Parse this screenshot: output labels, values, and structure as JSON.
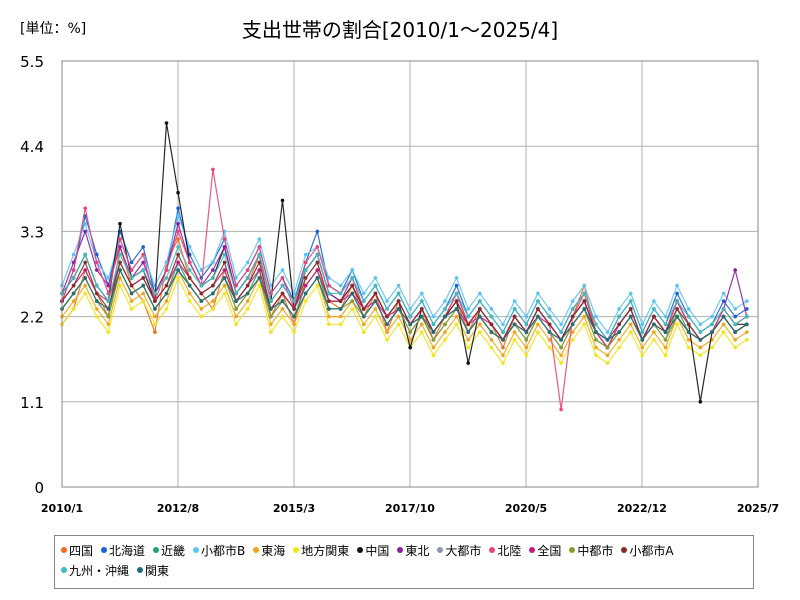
{
  "chart_data": {
    "type": "line",
    "title": "支出世帯の割合[2010/1～2025/4]",
    "unit_label": "[単位：%]",
    "xlabel": "",
    "ylabel": "",
    "ylim": [
      0,
      5.5
    ],
    "yticks": [
      "0",
      "1.1",
      "2.2",
      "3.3",
      "4.4",
      "5.5"
    ],
    "xticks": [
      "2010/1",
      "2012/8",
      "2015/3",
      "2017/10",
      "2020/5",
      "2022/12",
      "2025/7"
    ],
    "grid": true,
    "legend_position": "bottom",
    "series": [
      {
        "name": "四国",
        "color": "#f26b1d",
        "values": [
          2.1,
          2.3,
          2.8,
          2.5,
          2.2,
          3.1,
          2.6,
          2.4,
          2.0,
          2.9,
          3.2,
          2.7,
          2.5,
          2.3,
          2.8,
          2.4,
          2.6,
          3.0,
          2.2,
          2.5,
          2.1,
          2.7,
          2.9,
          2.4,
          2.3,
          2.6,
          2.2,
          2.5,
          2.0,
          2.4,
          2.1,
          2.3,
          1.9,
          2.2,
          2.4,
          2.0,
          2.3,
          2.1,
          1.8,
          2.2,
          2.0,
          2.3,
          2.1,
          1.9,
          2.2,
          2.6,
          2.0,
          1.8,
          2.1,
          2.3,
          1.9,
          2.2,
          2.0,
          2.4,
          2.1,
          1.9,
          2.0,
          2.3,
          2.1,
          2.2
        ]
      },
      {
        "name": "北海道",
        "color": "#1a5fd6",
        "values": [
          2.4,
          2.8,
          3.5,
          3.0,
          2.6,
          3.3,
          2.9,
          3.1,
          2.5,
          2.8,
          3.6,
          3.0,
          2.7,
          2.9,
          3.2,
          2.6,
          2.8,
          3.1,
          2.5,
          2.7,
          2.4,
          2.9,
          3.3,
          2.6,
          2.5,
          2.8,
          2.4,
          2.6,
          2.3,
          2.5,
          2.2,
          2.4,
          2.1,
          2.3,
          2.6,
          2.2,
          2.4,
          2.2,
          2.0,
          2.3,
          2.1,
          2.4,
          2.2,
          2.0,
          2.3,
          2.5,
          2.1,
          1.9,
          2.2,
          2.4,
          2.0,
          2.3,
          2.1,
          2.5,
          2.2,
          2.0,
          2.1,
          2.4,
          2.2,
          2.3
        ]
      },
      {
        "name": "近畿",
        "color": "#1fa36e",
        "values": [
          2.3,
          2.5,
          2.7,
          2.4,
          2.2,
          2.8,
          2.5,
          2.6,
          2.3,
          2.5,
          2.9,
          2.6,
          2.4,
          2.5,
          2.7,
          2.3,
          2.5,
          2.8,
          2.2,
          2.4,
          2.2,
          2.6,
          2.8,
          2.3,
          2.3,
          2.5,
          2.2,
          2.4,
          2.1,
          2.3,
          2.0,
          2.2,
          1.9,
          2.1,
          2.3,
          2.0,
          2.2,
          2.0,
          1.9,
          2.1,
          1.9,
          2.2,
          2.0,
          1.8,
          2.1,
          2.3,
          1.9,
          1.8,
          2.0,
          2.2,
          1.9,
          2.1,
          1.9,
          2.3,
          2.0,
          1.9,
          2.0,
          2.2,
          2.0,
          2.1
        ]
      },
      {
        "name": "小都市B",
        "color": "#5cc4f2",
        "values": [
          2.6,
          3.0,
          3.4,
          2.9,
          2.7,
          3.2,
          2.8,
          3.0,
          2.6,
          2.9,
          3.5,
          3.1,
          2.8,
          2.9,
          3.3,
          2.7,
          2.9,
          3.2,
          2.6,
          2.8,
          2.5,
          3.0,
          3.1,
          2.7,
          2.6,
          2.8,
          2.5,
          2.7,
          2.4,
          2.6,
          2.3,
          2.5,
          2.2,
          2.4,
          2.7,
          2.3,
          2.5,
          2.3,
          2.1,
          2.4,
          2.2,
          2.5,
          2.3,
          2.1,
          2.4,
          2.6,
          2.2,
          2.0,
          2.3,
          2.5,
          2.1,
          2.4,
          2.2,
          2.6,
          2.3,
          2.1,
          2.2,
          2.5,
          2.3,
          2.4
        ]
      },
      {
        "name": "東海",
        "color": "#f2a51a",
        "values": [
          2.2,
          2.4,
          2.6,
          2.3,
          2.1,
          2.7,
          2.4,
          2.5,
          2.2,
          2.4,
          2.8,
          2.5,
          2.3,
          2.4,
          2.6,
          2.2,
          2.4,
          2.7,
          2.1,
          2.3,
          2.1,
          2.5,
          2.7,
          2.2,
          2.2,
          2.4,
          2.1,
          2.3,
          2.0,
          2.2,
          1.9,
          2.1,
          1.8,
          2.0,
          2.2,
          1.9,
          2.1,
          1.9,
          1.7,
          2.0,
          1.8,
          2.1,
          1.9,
          1.7,
          2.0,
          2.2,
          1.8,
          1.7,
          1.9,
          2.1,
          1.8,
          2.0,
          1.8,
          2.2,
          1.9,
          1.8,
          1.9,
          2.1,
          1.9,
          2.0
        ]
      },
      {
        "name": "地方関東",
        "color": "#f2e51a",
        "values": [
          2.1,
          2.3,
          2.5,
          2.2,
          2.0,
          2.6,
          2.3,
          2.4,
          2.1,
          2.3,
          2.7,
          2.4,
          2.2,
          2.3,
          2.5,
          2.1,
          2.3,
          2.6,
          2.0,
          2.2,
          2.0,
          2.4,
          2.6,
          2.1,
          2.1,
          2.3,
          2.0,
          2.2,
          1.9,
          2.1,
          1.8,
          2.0,
          1.7,
          1.9,
          2.1,
          1.8,
          2.0,
          1.8,
          1.6,
          1.9,
          1.7,
          2.0,
          1.8,
          1.6,
          1.9,
          2.1,
          1.7,
          1.6,
          1.8,
          2.0,
          1.7,
          1.9,
          1.7,
          2.1,
          1.8,
          1.7,
          1.8,
          2.0,
          1.8,
          1.9
        ]
      },
      {
        "name": "中国",
        "color": "#111111",
        "values": [
          2.5,
          2.7,
          3.0,
          2.6,
          2.4,
          3.4,
          2.7,
          2.8,
          2.4,
          4.7,
          3.8,
          2.9,
          2.6,
          2.7,
          3.1,
          2.5,
          2.7,
          3.0,
          2.4,
          3.7,
          2.3,
          2.8,
          3.0,
          2.5,
          2.4,
          2.6,
          2.3,
          2.5,
          2.2,
          2.4,
          1.8,
          2.3,
          2.0,
          2.2,
          2.4,
          1.6,
          2.3,
          2.1,
          1.9,
          2.2,
          2.0,
          2.3,
          2.1,
          1.9,
          2.2,
          2.4,
          2.0,
          1.8,
          2.1,
          2.3,
          1.9,
          2.2,
          2.0,
          2.4,
          2.1,
          1.1,
          2.0,
          2.3,
          2.1,
          2.1
        ]
      },
      {
        "name": "東北",
        "color": "#8a1fa3",
        "values": [
          2.5,
          2.9,
          3.3,
          2.8,
          2.6,
          3.1,
          2.7,
          2.9,
          2.5,
          2.8,
          3.4,
          2.9,
          2.6,
          2.8,
          3.1,
          2.5,
          2.7,
          3.0,
          2.4,
          2.6,
          2.4,
          2.8,
          3.0,
          2.5,
          2.4,
          2.7,
          2.3,
          2.5,
          2.2,
          2.4,
          2.1,
          2.3,
          2.0,
          2.2,
          2.5,
          2.1,
          2.3,
          2.1,
          1.9,
          2.2,
          2.0,
          2.3,
          2.1,
          1.9,
          2.2,
          2.4,
          2.0,
          1.8,
          2.1,
          2.3,
          1.9,
          2.2,
          2.0,
          2.4,
          2.1,
          1.9,
          2.0,
          2.3,
          2.8,
          2.2
        ]
      },
      {
        "name": "大都市",
        "color": "#8c96a6",
        "values": [
          2.3,
          2.5,
          2.7,
          2.4,
          2.3,
          2.8,
          2.5,
          2.6,
          2.3,
          2.5,
          2.8,
          2.6,
          2.4,
          2.5,
          2.7,
          2.4,
          2.5,
          2.7,
          2.3,
          2.4,
          2.2,
          2.5,
          2.7,
          2.3,
          2.3,
          2.5,
          2.2,
          2.4,
          2.1,
          2.3,
          2.1,
          2.2,
          2.0,
          2.2,
          2.3,
          2.0,
          2.2,
          2.0,
          1.9,
          2.1,
          2.0,
          2.2,
          2.0,
          1.9,
          2.1,
          2.3,
          2.0,
          1.9,
          2.0,
          2.2,
          1.9,
          2.1,
          2.0,
          2.2,
          2.0,
          1.9,
          2.0,
          2.2,
          2.0,
          2.1
        ]
      },
      {
        "name": "北陸",
        "color": "#e8467a",
        "values": [
          2.4,
          2.8,
          3.6,
          2.9,
          2.5,
          3.2,
          2.8,
          3.0,
          2.4,
          2.8,
          3.3,
          2.9,
          2.6,
          4.1,
          3.2,
          2.6,
          2.8,
          3.1,
          2.5,
          2.7,
          2.3,
          2.9,
          3.1,
          2.6,
          2.5,
          2.7,
          2.3,
          2.5,
          2.2,
          2.4,
          2.1,
          2.3,
          2.0,
          2.2,
          2.5,
          2.1,
          2.3,
          2.1,
          1.9,
          2.2,
          2.0,
          2.3,
          2.1,
          1.0,
          2.2,
          2.5,
          2.0,
          1.8,
          2.1,
          2.3,
          1.9,
          2.2,
          2.0,
          2.4,
          2.1,
          1.9,
          2.0,
          2.3,
          2.1,
          2.2
        ]
      },
      {
        "name": "全国",
        "color": "#c8197c",
        "values": [
          2.4,
          2.6,
          2.8,
          2.5,
          2.4,
          2.9,
          2.6,
          2.7,
          2.4,
          2.6,
          2.9,
          2.7,
          2.5,
          2.6,
          2.8,
          2.4,
          2.6,
          2.8,
          2.3,
          2.5,
          2.3,
          2.6,
          2.8,
          2.4,
          2.4,
          2.5,
          2.3,
          2.4,
          2.2,
          2.3,
          2.1,
          2.3,
          2.0,
          2.2,
          2.3,
          2.1,
          2.2,
          2.1,
          1.9,
          2.1,
          2.0,
          2.2,
          2.1,
          1.9,
          2.1,
          2.3,
          2.0,
          1.9,
          2.0,
          2.2,
          1.9,
          2.1,
          2.0,
          2.2,
          2.0,
          1.9,
          2.0,
          2.2,
          2.0,
          2.1
        ]
      },
      {
        "name": "中都市",
        "color": "#8f9a2e",
        "values": [
          2.3,
          2.5,
          2.7,
          2.4,
          2.2,
          2.8,
          2.5,
          2.6,
          2.3,
          2.5,
          2.8,
          2.6,
          2.4,
          2.5,
          2.7,
          2.3,
          2.5,
          2.7,
          2.2,
          2.4,
          2.2,
          2.5,
          2.7,
          2.3,
          2.3,
          2.4,
          2.2,
          2.4,
          2.1,
          2.3,
          2.0,
          2.2,
          1.9,
          2.1,
          2.3,
          2.0,
          2.2,
          2.0,
          1.9,
          2.1,
          1.9,
          2.2,
          2.0,
          1.8,
          2.1,
          2.3,
          1.9,
          1.8,
          2.0,
          2.2,
          1.9,
          2.1,
          1.9,
          2.2,
          2.0,
          1.9,
          2.0,
          2.2,
          2.0,
          2.1
        ]
      },
      {
        "name": "小都市A",
        "color": "#8a2b2b",
        "values": [
          2.4,
          2.6,
          2.9,
          2.5,
          2.3,
          2.9,
          2.6,
          2.7,
          2.4,
          2.6,
          3.0,
          2.7,
          2.5,
          2.6,
          2.9,
          2.4,
          2.6,
          2.9,
          2.3,
          2.5,
          2.3,
          2.7,
          2.9,
          2.4,
          2.4,
          2.6,
          2.3,
          2.5,
          2.2,
          2.4,
          2.1,
          2.3,
          2.0,
          2.2,
          2.4,
          2.1,
          2.3,
          2.1,
          1.9,
          2.2,
          2.0,
          2.3,
          2.1,
          1.9,
          2.2,
          2.4,
          2.0,
          1.9,
          2.1,
          2.3,
          1.9,
          2.2,
          2.0,
          2.3,
          2.1,
          1.9,
          2.0,
          2.2,
          2.0,
          2.1
        ]
      },
      {
        "name": "九州・沖縄",
        "color": "#3fbcbc",
        "values": [
          2.5,
          2.7,
          3.0,
          2.6,
          2.4,
          3.0,
          2.7,
          2.8,
          2.5,
          2.7,
          3.1,
          2.8,
          2.6,
          2.7,
          3.0,
          2.5,
          2.7,
          3.0,
          2.4,
          2.6,
          2.4,
          2.8,
          3.0,
          2.5,
          2.5,
          2.7,
          2.4,
          2.6,
          2.3,
          2.5,
          2.2,
          2.4,
          2.1,
          2.3,
          2.5,
          2.2,
          2.4,
          2.2,
          2.0,
          2.3,
          2.1,
          2.4,
          2.2,
          2.0,
          2.3,
          2.5,
          2.1,
          1.9,
          2.2,
          2.4,
          2.0,
          2.3,
          2.1,
          2.4,
          2.2,
          2.0,
          2.1,
          2.3,
          2.1,
          2.2
        ]
      },
      {
        "name": "関東",
        "color": "#1f6f7a",
        "values": [
          2.3,
          2.5,
          2.7,
          2.4,
          2.3,
          2.8,
          2.5,
          2.6,
          2.3,
          2.5,
          2.8,
          2.6,
          2.4,
          2.5,
          2.7,
          2.4,
          2.5,
          2.7,
          2.3,
          2.4,
          2.2,
          2.5,
          2.7,
          2.3,
          2.3,
          2.5,
          2.2,
          2.4,
          2.1,
          2.3,
          2.1,
          2.2,
          2.0,
          2.2,
          2.3,
          2.0,
          2.2,
          2.0,
          1.9,
          2.1,
          2.0,
          2.2,
          2.0,
          1.9,
          2.1,
          2.3,
          2.0,
          1.9,
          2.0,
          2.2,
          1.9,
          2.1,
          2.0,
          2.2,
          2.0,
          1.9,
          2.0,
          2.2,
          2.0,
          2.1
        ]
      }
    ]
  }
}
